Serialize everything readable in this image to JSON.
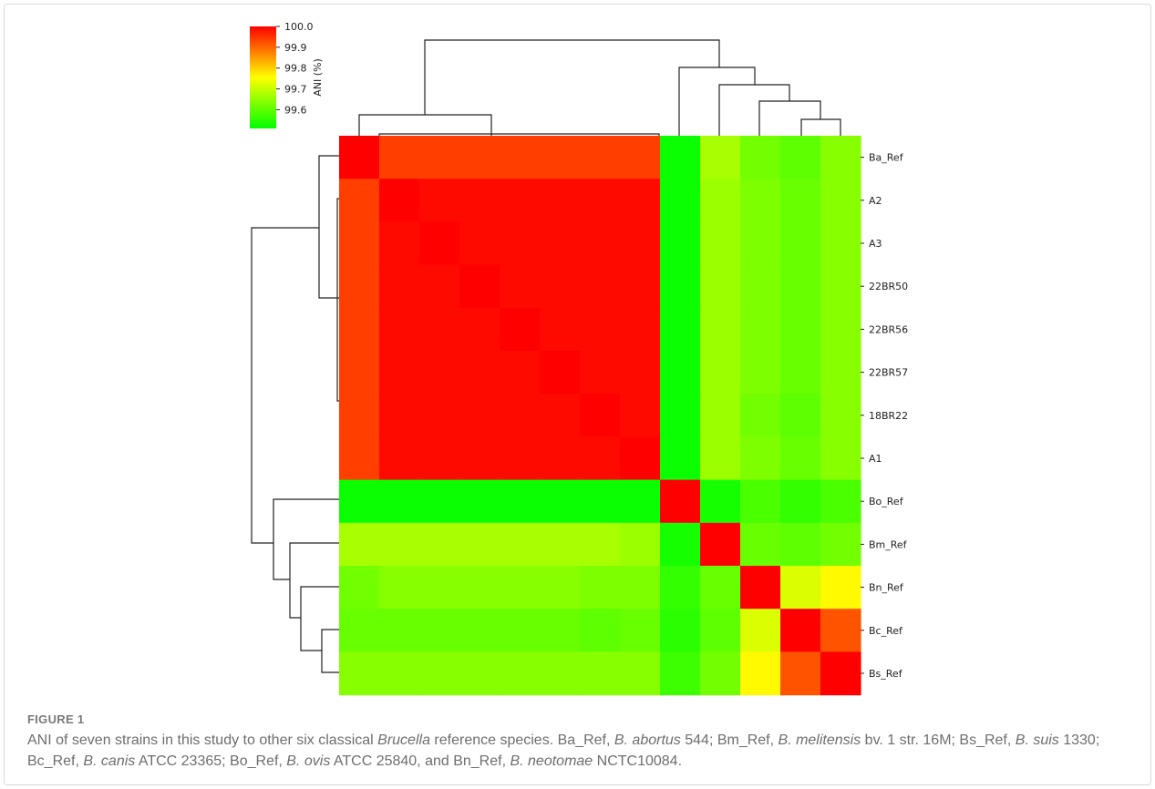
{
  "chart_data": {
    "type": "heatmap",
    "title": "",
    "colorbar": {
      "label": "ANI (%)",
      "ticks": [
        "100.0",
        "99.9",
        "99.8",
        "99.7",
        "99.6"
      ],
      "tick_values": [
        100.0,
        99.9,
        99.8,
        99.7,
        99.6
      ],
      "range": [
        99.51,
        100.0
      ],
      "colors": [
        "#00ff00",
        "#ffff00",
        "#ff0000"
      ]
    },
    "rows": [
      "Ba_Ref",
      "A2",
      "A3",
      "22BR50",
      "22BR56",
      "22BR57",
      "18BR22",
      "A1",
      "Bo_Ref",
      "Bm_Ref",
      "Bn_Ref",
      "Bc_Ref",
      "Bs_Ref"
    ],
    "columns": [
      "Ba_Ref",
      "A2",
      "A3",
      "22BR50",
      "22BR56",
      "22BR57",
      "18BR22",
      "A1",
      "Bo_Ref",
      "Bm_Ref",
      "Bn_Ref",
      "Bc_Ref",
      "Bs_Ref"
    ],
    "values": [
      [
        100.0,
        99.94,
        99.94,
        99.94,
        99.94,
        99.94,
        99.94,
        99.94,
        99.52,
        99.67,
        99.62,
        99.6,
        99.64
      ],
      [
        99.94,
        100.0,
        99.99,
        99.99,
        99.99,
        99.99,
        99.99,
        99.99,
        99.52,
        99.66,
        99.63,
        99.61,
        99.64
      ],
      [
        99.94,
        99.99,
        100.0,
        99.99,
        99.99,
        99.99,
        99.99,
        99.99,
        99.52,
        99.66,
        99.63,
        99.61,
        99.64
      ],
      [
        99.94,
        99.99,
        99.99,
        100.0,
        99.99,
        99.99,
        99.99,
        99.99,
        99.52,
        99.66,
        99.63,
        99.61,
        99.64
      ],
      [
        99.94,
        99.99,
        99.99,
        99.99,
        100.0,
        99.99,
        99.99,
        99.99,
        99.52,
        99.66,
        99.63,
        99.61,
        99.64
      ],
      [
        99.94,
        99.99,
        99.99,
        99.99,
        99.99,
        100.0,
        99.99,
        99.99,
        99.52,
        99.66,
        99.63,
        99.61,
        99.64
      ],
      [
        99.94,
        99.99,
        99.99,
        99.99,
        99.99,
        99.99,
        100.0,
        99.99,
        99.52,
        99.66,
        99.62,
        99.6,
        99.64
      ],
      [
        99.94,
        99.99,
        99.99,
        99.99,
        99.99,
        99.99,
        99.99,
        100.0,
        99.52,
        99.66,
        99.63,
        99.61,
        99.64
      ],
      [
        99.52,
        99.52,
        99.52,
        99.52,
        99.52,
        99.52,
        99.52,
        99.52,
        100.0,
        99.53,
        99.58,
        99.56,
        99.58
      ],
      [
        99.67,
        99.67,
        99.67,
        99.67,
        99.67,
        99.67,
        99.67,
        99.66,
        99.53,
        100.0,
        99.61,
        99.6,
        99.62
      ],
      [
        99.62,
        99.64,
        99.64,
        99.64,
        99.64,
        99.64,
        99.63,
        99.63,
        99.56,
        99.61,
        100.0,
        99.72,
        99.76
      ],
      [
        99.61,
        99.61,
        99.61,
        99.61,
        99.61,
        99.61,
        99.6,
        99.61,
        99.55,
        99.6,
        99.72,
        100.0,
        99.92
      ],
      [
        99.64,
        99.64,
        99.64,
        99.64,
        99.64,
        99.64,
        99.64,
        99.64,
        99.57,
        99.62,
        99.76,
        99.92,
        100.0
      ]
    ]
  },
  "caption": {
    "label": "FIGURE 1",
    "parts": [
      {
        "t": "ANI of seven strains in this study to other six classical ",
        "i": false
      },
      {
        "t": "Brucella",
        "i": true
      },
      {
        "t": " reference species. Ba_Ref, ",
        "i": false
      },
      {
        "t": "B. abortus",
        "i": true
      },
      {
        "t": " 544; Bm_Ref, ",
        "i": false
      },
      {
        "t": "B. melitensis",
        "i": true
      },
      {
        "t": " bv. 1 str. 16M; Bs_Ref, ",
        "i": false
      },
      {
        "t": "B. suis",
        "i": true
      },
      {
        "t": " 1330; Bc_Ref, ",
        "i": false
      },
      {
        "t": "B. canis",
        "i": true
      },
      {
        "t": " ATCC 23365; Bo_Ref, ",
        "i": false
      },
      {
        "t": "B. ovis",
        "i": true
      },
      {
        "t": " ATCC 25840, and Bn_Ref, ",
        "i": false
      },
      {
        "t": "B. neotomae",
        "i": true
      },
      {
        "t": " NCTC10084.",
        "i": false
      }
    ]
  }
}
